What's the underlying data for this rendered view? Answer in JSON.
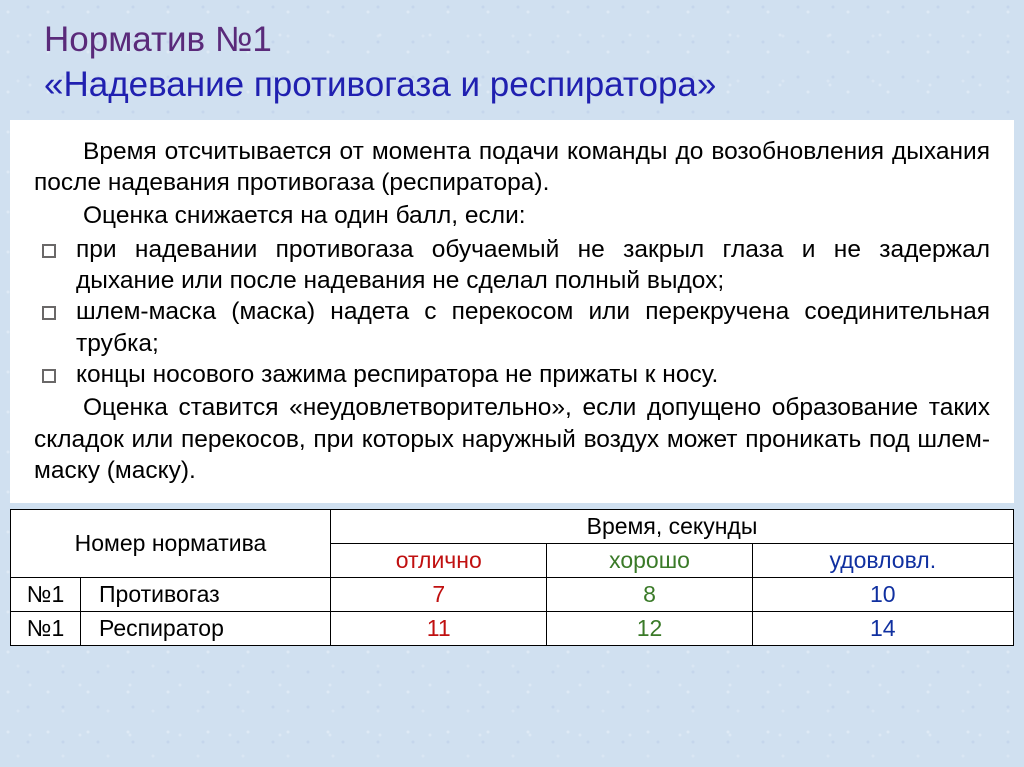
{
  "heading": {
    "line1": "Норматив №1",
    "line2": "«Надевание противогаза и респиратора»",
    "color_line1": "#5a2a7a",
    "color_line2": "#2020b0"
  },
  "body": {
    "para1": "Время отсчитывается от момента подачи команды до возобновления дыхания после надевания противогаза (респиратора).",
    "para2": "Оценка снижается на один балл, если:",
    "bullets": [
      "при надевании противогаза обучаемый не закрыл глаза и не задержал дыхание или после надевания не сделал полный выдох;",
      "шлем-маска (маска) надета с перекосом или перекручена соединительная трубка;",
      "концы носового зажима респиратора не прижаты к носу."
    ],
    "para3": "Оценка ставится «неудовлетворительно», если допущено образование таких складок или перекосов, при которых наружный воздух может проникать под шлем-маску (маску)."
  },
  "table": {
    "header_norm": "Номер норматива",
    "header_time": "Время, секунды",
    "grades": {
      "excellent": {
        "label": "отлично",
        "color": "#c01010"
      },
      "good": {
        "label": "хорошо",
        "color": "#3a7a28"
      },
      "satisfactory": {
        "label": "удовловл.",
        "color": "#1030a0"
      }
    },
    "rows": [
      {
        "num": "№1",
        "name": "Противогаз",
        "excellent": "7",
        "good": "8",
        "satisfactory": "10"
      },
      {
        "num": "№1",
        "name": "Респиратор",
        "excellent": "11",
        "good": "12",
        "satisfactory": "14"
      }
    ],
    "background_color": "#ffffff",
    "border_color": "#000000"
  },
  "page": {
    "background_base": "#d0e0f0",
    "content_background": "#ffffff"
  }
}
